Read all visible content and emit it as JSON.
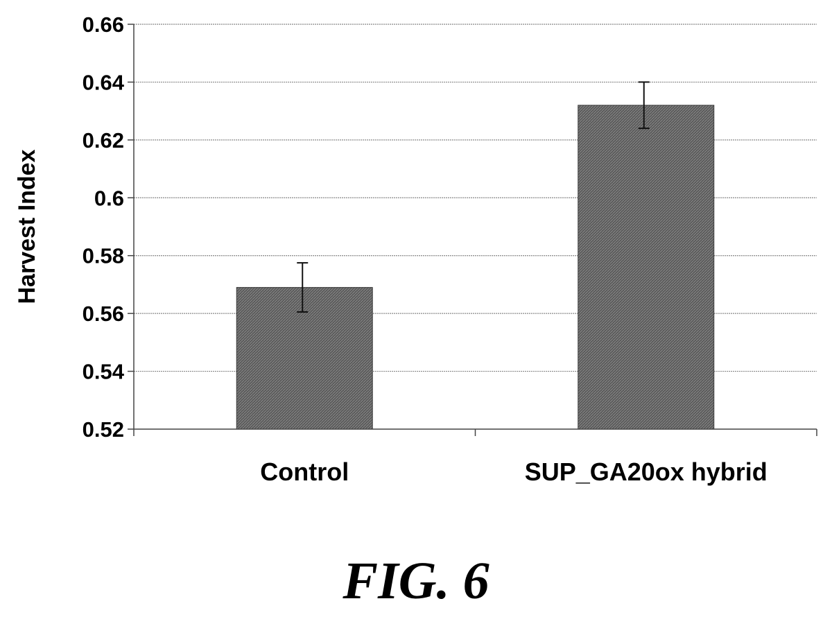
{
  "chart_data": {
    "type": "bar",
    "categories": [
      "Control",
      "SUP_GA20ox hybrid"
    ],
    "values": [
      0.569,
      0.632
    ],
    "error": [
      0.0085,
      0.008
    ],
    "xlabel": "",
    "ylabel": "Harvest Index",
    "ylim": [
      0.52,
      0.66
    ],
    "yticks": [
      "0.52",
      "0.54",
      "0.56",
      "0.58",
      "0.6",
      "0.62",
      "0.64",
      "0.66"
    ],
    "grid": true,
    "bar_color": "#555555"
  },
  "figure_label": "FIG. 6"
}
